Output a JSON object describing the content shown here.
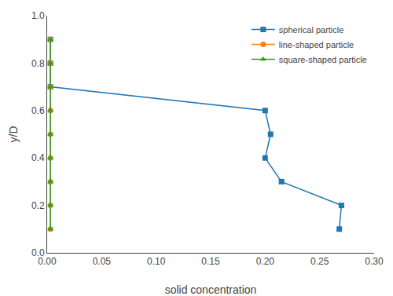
{
  "chart_data": {
    "type": "line",
    "xlabel": "solid concentration",
    "ylabel": "y/D",
    "xlim": [
      0.0,
      0.3
    ],
    "ylim": [
      0.0,
      1.0
    ],
    "xticks": [
      {
        "value": 0.0,
        "label": "0.00"
      },
      0.05,
      {
        "value": 0.1,
        "label": "0.10"
      },
      0.15,
      {
        "value": 0.2,
        "label": "0.20"
      },
      0.25,
      {
        "value": 0.3,
        "label": "0.30"
      }
    ],
    "yticks": [
      {
        "value": 0.0,
        "label": "0.0"
      },
      0.2,
      0.4,
      0.6,
      0.8,
      {
        "value": 1.0,
        "label": "1.0"
      }
    ],
    "grid": false,
    "legend": "upper right",
    "series": [
      {
        "name": "spherical particle",
        "marker": "square",
        "x": [
          0.003,
          0.003,
          0.003,
          0.2,
          0.205,
          0.2,
          0.215,
          0.27,
          0.268
        ],
        "values": [
          0.9,
          0.8,
          0.7,
          0.6,
          0.5,
          0.4,
          0.3,
          0.2,
          0.1
        ]
      },
      {
        "name": "line-shaped particle",
        "marker": "circle",
        "x": [
          0.003,
          0.003,
          0.003,
          0.003,
          0.003,
          0.003,
          0.003,
          0.003,
          0.003
        ],
        "values": [
          0.9,
          0.8,
          0.7,
          0.6,
          0.5,
          0.4,
          0.3,
          0.2,
          0.1
        ]
      },
      {
        "name": "square-shaped particle",
        "marker": "triangle-up",
        "x": [
          0.003,
          0.003,
          0.003,
          0.003,
          0.003,
          0.003,
          0.003,
          0.003,
          0.003
        ],
        "values": [
          0.9,
          0.8,
          0.7,
          0.6,
          0.5,
          0.4,
          0.3,
          0.2,
          0.1
        ]
      }
    ]
  }
}
